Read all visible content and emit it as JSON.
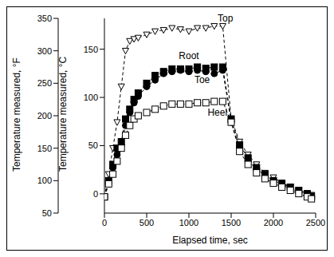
{
  "chart_data": {
    "type": "line",
    "x_label": "Elapsed time, sec",
    "y_label": "Temperature measured, °F",
    "y2_label": "Temperature measured, °C",
    "x": [
      0,
      50,
      100,
      150,
      200,
      250,
      300,
      350,
      400,
      500,
      600,
      700,
      800,
      900,
      1000,
      1100,
      1200,
      1300,
      1400,
      1500,
      1600,
      1700,
      1800,
      1900,
      2000,
      2100,
      2200,
      2300,
      2400,
      2450
    ],
    "xlim": [
      0,
      2500
    ],
    "xticks": [
      0,
      500,
      1000,
      1500,
      2000,
      2500
    ],
    "ylim": [
      50,
      350
    ],
    "yticks": [
      50,
      100,
      150,
      200,
      250,
      300,
      350
    ],
    "y2lim": [
      -20,
      182
    ],
    "y2ticks": [
      0,
      50,
      100,
      150
    ],
    "grid": false,
    "series": [
      {
        "name": "Top",
        "color": "#000000",
        "marker": "triangle_down_open",
        "line_style": "dashed",
        "values": [
          75,
          110,
          150,
          190,
          245,
          300,
          315,
          318,
          320,
          325,
          330,
          332,
          335,
          333,
          330,
          335,
          335,
          338,
          338,
          195,
          160,
          140,
          125,
          112,
          105,
          97,
          90,
          85,
          80,
          78
        ]
      },
      {
        "name": "Root",
        "color": "#000000",
        "marker": "square",
        "line_style": "dashed",
        "values": [
          75,
          100,
          125,
          150,
          160,
          195,
          210,
          225,
          235,
          250,
          262,
          268,
          272,
          272,
          272,
          275,
          273,
          275,
          275,
          195,
          155,
          135,
          120,
          110,
          100,
          95,
          90,
          85,
          80,
          76
        ]
      },
      {
        "name": "Toe",
        "color": "#000000",
        "marker": "circle",
        "line_style": "dashed",
        "values": [
          75,
          95,
          120,
          140,
          155,
          185,
          205,
          220,
          230,
          245,
          255,
          265,
          268,
          270,
          268,
          270,
          268,
          265,
          270,
          190,
          150,
          130,
          118,
          108,
          100,
          93,
          88,
          83,
          78,
          75
        ]
      },
      {
        "name": "Heel",
        "color": "#000000",
        "marker": "square_open",
        "line_style": "dashed",
        "values": [
          75,
          95,
          110,
          130,
          150,
          170,
          185,
          195,
          200,
          205,
          210,
          215,
          218,
          218,
          218,
          220,
          220,
          222,
          222,
          190,
          145,
          125,
          112,
          103,
          96,
          90,
          85,
          80,
          75,
          72
        ]
      }
    ]
  }
}
